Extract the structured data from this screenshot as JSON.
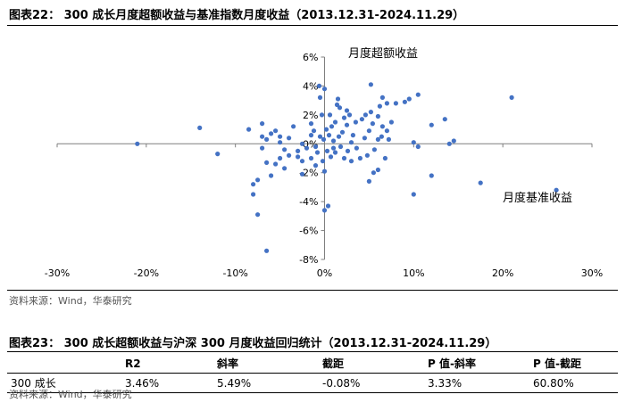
{
  "figure1": {
    "title": "图表22：  300 成长月度超额收益与基准指数月度收益（2013.12.31-2024.11.29）",
    "source": "资料来源：Wind，华泰研究"
  },
  "chart_data": {
    "type": "scatter",
    "title": "",
    "xlabel": "月度基准收益",
    "ylabel": "月度超额收益",
    "xlim": [
      -30,
      30
    ],
    "ylim": [
      -8,
      6
    ],
    "x_ticks": [
      "-30%",
      "-20%",
      "-10%",
      "0%",
      "10%",
      "20%",
      "30%"
    ],
    "y_ticks": [
      "6%",
      "4%",
      "2%",
      "0%",
      "-2%",
      "-4%",
      "-6%",
      "-8%"
    ],
    "grid": false,
    "legend": "none",
    "color": "#4472C4",
    "points": [
      [
        -21,
        0.0
      ],
      [
        -14,
        1.1
      ],
      [
        -12,
        -0.7
      ],
      [
        -8.5,
        1.0
      ],
      [
        -8,
        -2.8
      ],
      [
        -8,
        -3.5
      ],
      [
        -7.5,
        -4.9
      ],
      [
        -7.5,
        -2.5
      ],
      [
        -7,
        0.5
      ],
      [
        -7,
        1.4
      ],
      [
        -7,
        -0.3
      ],
      [
        -6.5,
        -1.3
      ],
      [
        -6.5,
        -7.4
      ],
      [
        -6.5,
        0.3
      ],
      [
        -6,
        0.7
      ],
      [
        -6,
        -2.2
      ],
      [
        -5.5,
        0.9
      ],
      [
        -5.5,
        -1.4
      ],
      [
        -5,
        0.5
      ],
      [
        -5,
        0.1
      ],
      [
        -5,
        -1.0
      ],
      [
        -4.5,
        -0.4
      ],
      [
        -4.5,
        -1.7
      ],
      [
        -4,
        0.4
      ],
      [
        -4,
        -0.8
      ],
      [
        -3.5,
        1.2
      ],
      [
        -3,
        -0.5
      ],
      [
        -3,
        -0.9
      ],
      [
        -2.5,
        0.0
      ],
      [
        -2.5,
        -2.1
      ],
      [
        -2.5,
        -1.2
      ],
      [
        -2,
        -0.3
      ],
      [
        -1.5,
        1.4
      ],
      [
        -1.5,
        0.6
      ],
      [
        -1.5,
        -1.0
      ],
      [
        -1.2,
        0.9
      ],
      [
        -1,
        -1.5
      ],
      [
        -1,
        -0.2
      ],
      [
        -0.8,
        -0.6
      ],
      [
        -0.6,
        4.0
      ],
      [
        -0.5,
        3.2
      ],
      [
        -0.5,
        0.5
      ],
      [
        -0.3,
        2.0
      ],
      [
        -0.2,
        -1.2
      ],
      [
        -0.1,
        0.3
      ],
      [
        0,
        -4.6
      ],
      [
        0,
        3.8
      ],
      [
        0,
        -1.9
      ],
      [
        0.2,
        1.0
      ],
      [
        0.3,
        -0.5
      ],
      [
        0.4,
        -4.3
      ],
      [
        0.5,
        0.6
      ],
      [
        0.6,
        2.0
      ],
      [
        0.7,
        -0.9
      ],
      [
        0.8,
        1.2
      ],
      [
        1.0,
        -0.3
      ],
      [
        1.0,
        0.2
      ],
      [
        1.2,
        1.5
      ],
      [
        1.2,
        -0.6
      ],
      [
        1.4,
        2.7
      ],
      [
        1.5,
        3.1
      ],
      [
        1.6,
        0.5
      ],
      [
        1.7,
        2.5
      ],
      [
        1.8,
        -0.2
      ],
      [
        2.0,
        0.8
      ],
      [
        2.2,
        1.8
      ],
      [
        2.2,
        -1.0
      ],
      [
        2.5,
        1.3
      ],
      [
        2.5,
        2.3
      ],
      [
        2.6,
        -0.5
      ],
      [
        2.8,
        2.0
      ],
      [
        3.0,
        0.1
      ],
      [
        3.0,
        -1.2
      ],
      [
        3.2,
        0.6
      ],
      [
        3.5,
        1.5
      ],
      [
        3.6,
        -0.3
      ],
      [
        4.0,
        -1.0
      ],
      [
        4.2,
        1.7
      ],
      [
        4.5,
        0.4
      ],
      [
        4.6,
        2.0
      ],
      [
        4.8,
        -0.8
      ],
      [
        5.0,
        0.9
      ],
      [
        5.2,
        2.2
      ],
      [
        5.4,
        1.4
      ],
      [
        5.5,
        -2.0
      ],
      [
        5.6,
        -0.4
      ],
      [
        6.0,
        1.9
      ],
      [
        6.0,
        0.3
      ],
      [
        6.2,
        2.6
      ],
      [
        6.4,
        0.5
      ],
      [
        6.5,
        1.2
      ],
      [
        6.8,
        -1.0
      ],
      [
        7.0,
        0.9
      ],
      [
        7.2,
        0.3
      ],
      [
        5.2,
        4.1
      ],
      [
        5.0,
        -2.6
      ],
      [
        6.0,
        -1.8
      ],
      [
        6.5,
        3.2
      ],
      [
        7.0,
        2.8
      ],
      [
        7.5,
        1.5
      ],
      [
        8.0,
        2.8
      ],
      [
        9.0,
        2.9
      ],
      [
        9.5,
        3.1
      ],
      [
        10.0,
        0.1
      ],
      [
        10.5,
        -0.2
      ],
      [
        10.5,
        3.4
      ],
      [
        10.0,
        -3.5
      ],
      [
        12.0,
        -2.2
      ],
      [
        12.0,
        1.3
      ],
      [
        13.5,
        1.7
      ],
      [
        14.0,
        0.0
      ],
      [
        14.5,
        0.2
      ],
      [
        17.5,
        -2.7
      ],
      [
        21.0,
        3.2
      ],
      [
        26.0,
        -3.2
      ]
    ]
  },
  "figure2": {
    "title": "图表23：  300 成长超额收益与沪深 300 月度收益回归统计（2013.12.31-2024.11.29）",
    "headers": [
      "",
      "R2",
      "斜率",
      "截距",
      "P 值-斜率",
      "P 值-截距"
    ],
    "rows": [
      [
        "300 成长",
        "3.46%",
        "5.49%",
        "-0.08%",
        "3.33%",
        "60.80%"
      ]
    ],
    "source": "资料来源：Wind，华泰研究"
  }
}
